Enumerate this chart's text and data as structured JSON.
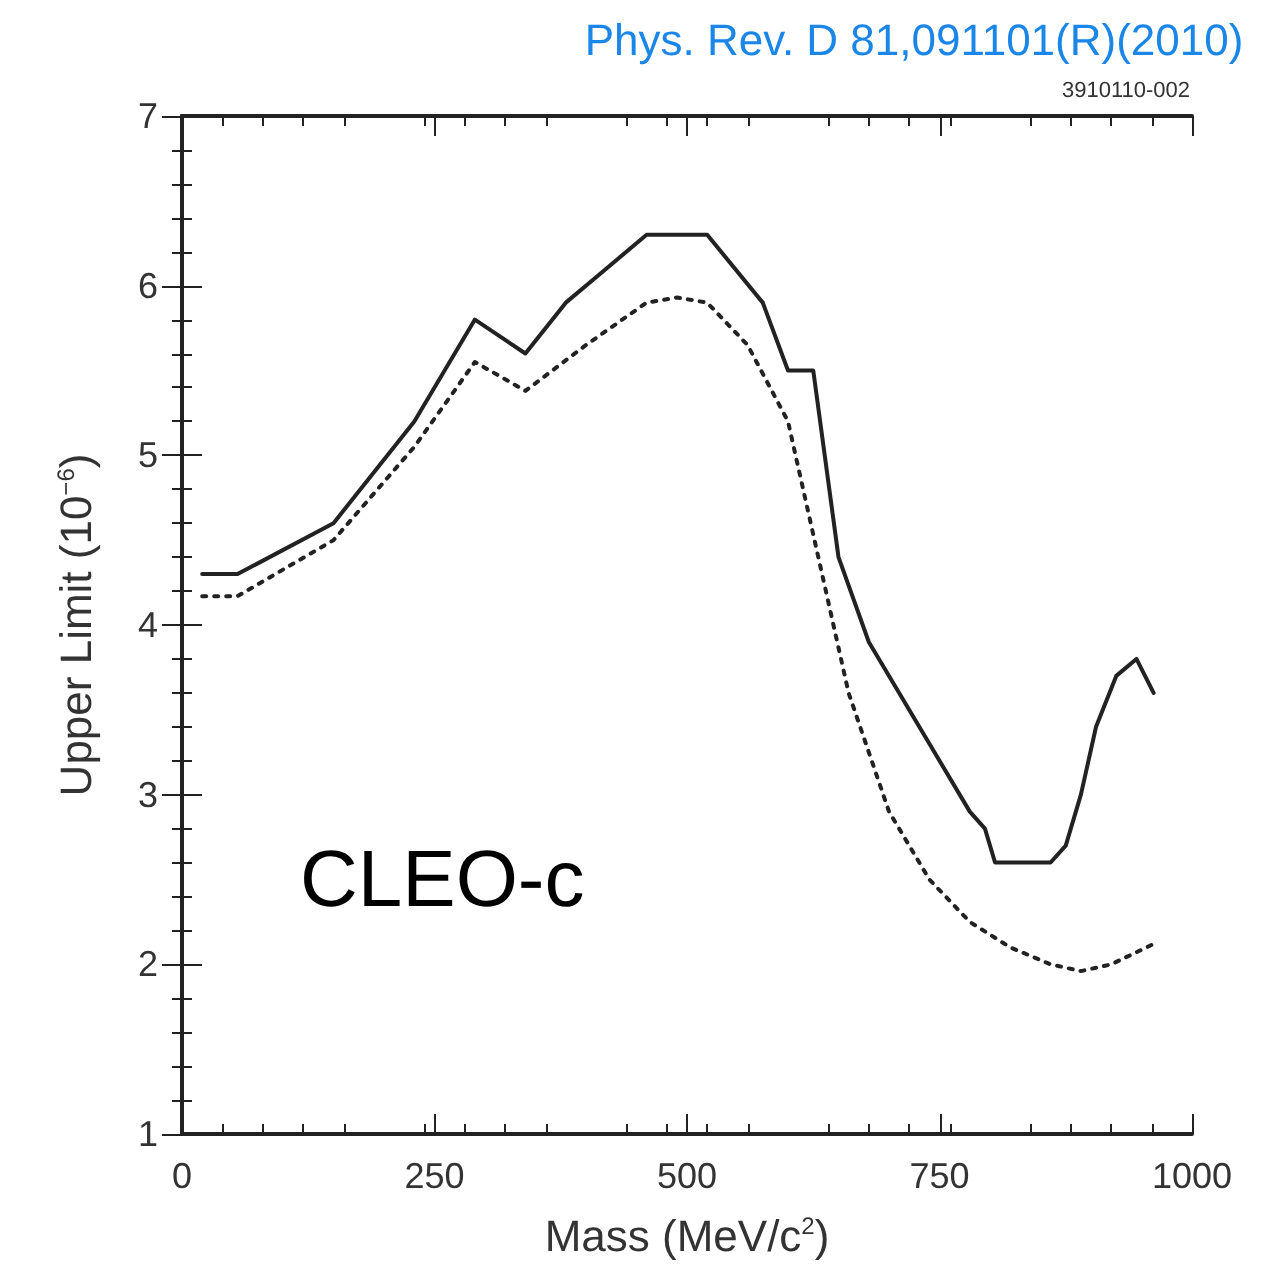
{
  "chart_data": {
    "type": "line",
    "title": "Phys. Rev. D 81,091101(R)(2010)",
    "xlabel": "Mass (MeV/c$^{2}$)",
    "ylabel": "Upper Limit (10$^{−6}$)",
    "annotations": [
      "3910110-002",
      "CLEO-c"
    ],
    "xlim": [
      0,
      1000
    ],
    "xticks": [
      0,
      250,
      500,
      750,
      1000
    ],
    "ylim": [
      1,
      7
    ],
    "yticks": [
      1,
      2,
      3,
      4,
      5,
      6,
      7
    ],
    "grid": false,
    "marker": "none",
    "series": [
      {
        "color": "#222222",
        "line_style": "solid",
        "x": [
          20,
          55,
          150,
          230,
          290,
          340,
          380,
          420,
          460,
          520,
          575,
          600,
          625,
          650,
          680,
          740,
          780,
          795,
          805,
          860,
          875,
          890,
          905,
          925,
          945,
          962
        ],
        "values": [
          4.3,
          4.3,
          4.6,
          5.2,
          5.8,
          5.6,
          5.9,
          6.1,
          6.3,
          6.3,
          5.9,
          5.5,
          5.5,
          4.4,
          3.9,
          3.3,
          2.9,
          2.8,
          2.6,
          2.6,
          2.7,
          3.0,
          3.4,
          3.7,
          3.8,
          3.6
        ]
      },
      {
        "color": "#222222",
        "line_style": "dotted",
        "x": [
          20,
          55,
          150,
          230,
          290,
          340,
          400,
          460,
          490,
          520,
          560,
          600,
          630,
          660,
          700,
          740,
          780,
          820,
          860,
          890,
          920,
          962
        ],
        "values": [
          4.17,
          4.17,
          4.5,
          5.05,
          5.55,
          5.38,
          5.65,
          5.9,
          5.93,
          5.9,
          5.65,
          5.2,
          4.4,
          3.6,
          2.9,
          2.5,
          2.25,
          2.1,
          2.0,
          1.96,
          2.0,
          2.12
        ]
      }
    ]
  }
}
